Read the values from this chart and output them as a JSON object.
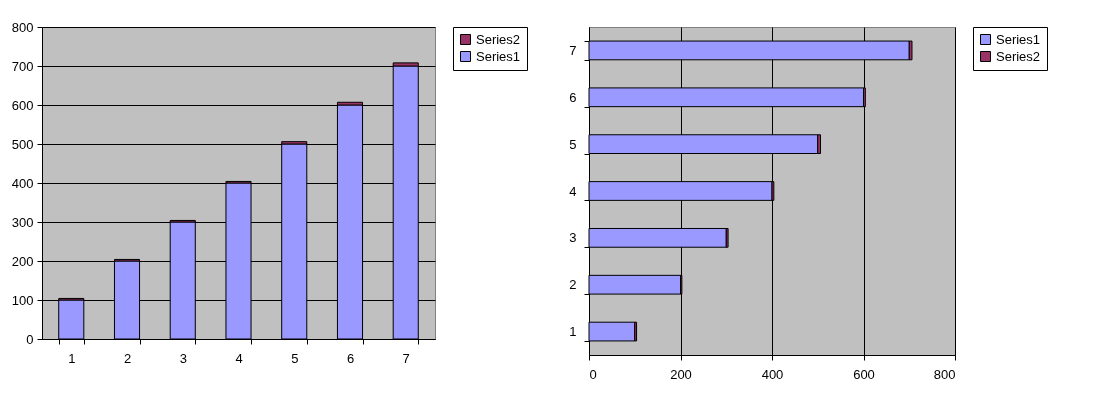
{
  "chart_data": [
    {
      "type": "bar",
      "stacked": true,
      "categories": [
        "1",
        "2",
        "3",
        "4",
        "5",
        "6",
        "7"
      ],
      "series": [
        {
          "name": "Series1",
          "color": "#9999ff",
          "values": [
            100,
            200,
            300,
            400,
            500,
            600,
            700
          ]
        },
        {
          "name": "Series2",
          "color": "#993366",
          "values": [
            4,
            4,
            4,
            4,
            6,
            7,
            8
          ]
        }
      ],
      "ylim": [
        0,
        800
      ],
      "yticks": [
        0,
        100,
        200,
        300,
        400,
        500,
        600,
        700,
        800
      ],
      "grid": "y",
      "legend": "right"
    },
    {
      "type": "bar",
      "stacked": true,
      "orientation": "horizontal",
      "categories": [
        "7",
        "6",
        "5",
        "4",
        "3",
        "2",
        "1"
      ],
      "series": [
        {
          "name": "Series1",
          "color": "#9999ff",
          "values": [
            700,
            600,
            500,
            400,
            300,
            200,
            100
          ]
        },
        {
          "name": "Series2",
          "color": "#993366",
          "values": [
            6,
            4,
            6,
            4,
            4,
            3,
            4
          ]
        }
      ],
      "xlim": [
        0,
        800
      ],
      "xticks": [
        0,
        200,
        400,
        600,
        800
      ],
      "grid": "x",
      "legend": "right"
    }
  ]
}
